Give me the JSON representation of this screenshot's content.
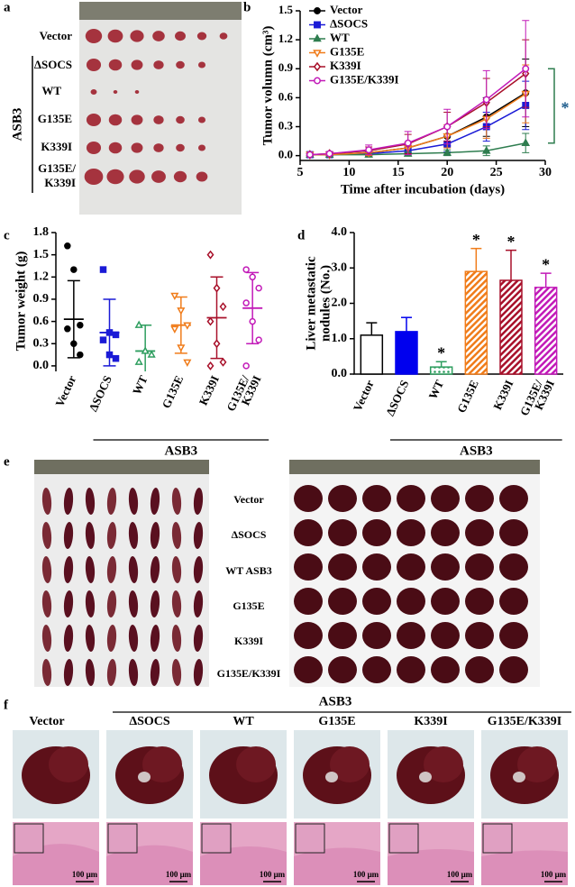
{
  "panel_labels": [
    "a",
    "b",
    "c",
    "d",
    "e",
    "f"
  ],
  "panel_a": {
    "rows": [
      "Vector",
      "ΔSOCS",
      "WT",
      "G135E",
      "K339I",
      [
        "G135E/",
        "K339I"
      ]
    ],
    "group": "ASB3"
  },
  "panel_e": {
    "rows": [
      "Vector",
      "ΔSOCS",
      "WT ASB3",
      "G135E",
      "K339I",
      "G135E/K339I"
    ]
  },
  "panel_f": {
    "group": "ASB3",
    "columns": [
      "Vector",
      "ΔSOCS",
      "WT",
      "G135E",
      "K339I",
      "G135E/K339I"
    ],
    "scale_bars": [
      "100 μm",
      "100 μm",
      "100 μm",
      "100 μm",
      "100 μm",
      "100 μm"
    ]
  },
  "chart_data": [
    {
      "type": "line",
      "xlabel": "Time after incubation (days)",
      "ylabel": "Tumor volumn (cm³)",
      "x": [
        6,
        8,
        12,
        16,
        20,
        24,
        28
      ],
      "xlim": [
        5,
        30
      ],
      "xticks": [
        5,
        10,
        15,
        20,
        25,
        30
      ],
      "ylim": [
        -0.05,
        1.5
      ],
      "yticks": [
        {
          "value": 0,
          "label": "0.0"
        },
        0.3,
        0.6,
        0.9,
        1.2,
        1.5
      ],
      "series": [
        {
          "name": "Vector",
          "color": "#000000",
          "marker": "circle",
          "filled": true,
          "values": [
            0.01,
            0.01,
            0.03,
            0.08,
            0.2,
            0.4,
            0.65
          ],
          "errors": [
            0.01,
            0.01,
            0.02,
            0.05,
            0.1,
            0.2,
            0.35
          ]
        },
        {
          "name": "ΔSOCS",
          "color": "#1a1ad6",
          "marker": "square",
          "filled": true,
          "values": [
            0.01,
            0.01,
            0.02,
            0.05,
            0.12,
            0.3,
            0.52
          ],
          "errors": [
            0.01,
            0.01,
            0.02,
            0.04,
            0.08,
            0.15,
            0.25
          ]
        },
        {
          "name": "WT",
          "color": "#2e7d4f",
          "marker": "triangle-up",
          "filled": true,
          "values": [
            0.01,
            0.01,
            0.01,
            0.02,
            0.03,
            0.05,
            0.13
          ],
          "errors": [
            0.01,
            0.01,
            0.01,
            0.02,
            0.03,
            0.05,
            0.1
          ]
        },
        {
          "name": "G135E",
          "color": "#f07c1a",
          "marker": "triangle-down",
          "filled": false,
          "values": [
            0.01,
            0.01,
            0.03,
            0.08,
            0.2,
            0.38,
            0.64
          ],
          "errors": [
            0.01,
            0.01,
            0.03,
            0.06,
            0.12,
            0.2,
            0.3
          ]
        },
        {
          "name": "K339I",
          "color": "#a8102a",
          "marker": "diamond",
          "filled": false,
          "values": [
            0.01,
            0.02,
            0.05,
            0.12,
            0.3,
            0.55,
            0.85
          ],
          "errors": [
            0.01,
            0.02,
            0.04,
            0.1,
            0.15,
            0.25,
            0.35
          ]
        },
        {
          "name": "G135E/K339I",
          "color": "#c21ab8",
          "marker": "circle",
          "filled": false,
          "values": [
            0.01,
            0.02,
            0.06,
            0.13,
            0.3,
            0.58,
            0.9
          ],
          "errors": [
            0.01,
            0.02,
            0.05,
            0.12,
            0.18,
            0.3,
            0.5
          ]
        }
      ],
      "annotation": "*",
      "bracket_color": "#2e7d4f"
    },
    {
      "type": "dotplot",
      "ylabel": "Tumor weight (g)",
      "categories": [
        "Vector",
        "ΔSOCS",
        "WT",
        "G135E",
        "K339I",
        [
          "G135E/",
          "K339I"
        ]
      ],
      "group_label": "ASB3",
      "ylim": [
        -0.05,
        1.8
      ],
      "yticks": [
        {
          "value": 0,
          "label": "0.0"
        },
        0.3,
        0.6,
        0.9,
        1.2,
        1.5,
        1.8
      ],
      "groups": [
        {
          "color": "#000000",
          "marker": "circle",
          "filled": true,
          "points": [
            1.62,
            1.3,
            0.55,
            0.5,
            0.3,
            0.15
          ],
          "mean": 0.63,
          "sd": 0.52
        },
        {
          "color": "#1a1ad6",
          "marker": "square",
          "filled": true,
          "points": [
            1.3,
            0.45,
            0.42,
            0.35,
            0.15,
            0.1
          ],
          "mean": 0.45,
          "sd": 0.45
        },
        {
          "color": "#2e9e5f",
          "marker": "triangle-up",
          "filled": false,
          "points": [
            0.55,
            0.2,
            0.15,
            0.05
          ],
          "mean": 0.2,
          "sd": 0.35
        },
        {
          "color": "#f07c1a",
          "marker": "triangle-down",
          "filled": false,
          "points": [
            0.95,
            0.75,
            0.55,
            0.5,
            0.25,
            0.05
          ],
          "mean": 0.55,
          "sd": 0.38
        },
        {
          "color": "#a8102a",
          "marker": "diamond",
          "filled": false,
          "points": [
            1.5,
            1.05,
            0.8,
            0.6,
            0.3,
            0.05,
            0.0
          ],
          "mean": 0.65,
          "sd": 0.55
        },
        {
          "color": "#c21ab8",
          "marker": "circle",
          "filled": false,
          "points": [
            1.3,
            1.2,
            1.05,
            0.85,
            0.6,
            0.35,
            0.0
          ],
          "mean": 0.78,
          "sd": 0.48
        }
      ]
    },
    {
      "type": "bar",
      "ylabel": [
        "Liver metastatic",
        "nodules (No.)"
      ],
      "categories": [
        "Vector",
        "ΔSOCS",
        "WT",
        "G135E",
        "K339I",
        [
          "G135E/",
          "K339I"
        ]
      ],
      "group_label": "ASB3",
      "ylim": [
        0,
        4
      ],
      "yticks": [
        {
          "value": 0,
          "label": "0.0"
        },
        {
          "value": 1,
          "label": "1.0"
        },
        {
          "value": 2,
          "label": "2.0"
        },
        {
          "value": 3,
          "label": "3.0"
        },
        {
          "value": 4,
          "label": "4.0"
        }
      ],
      "values": [
        1.1,
        1.2,
        0.2,
        2.9,
        2.65,
        2.45
      ],
      "errors": [
        0.35,
        0.4,
        0.15,
        0.65,
        0.85,
        0.4
      ],
      "colors": [
        "#000000",
        "#0000ee",
        "#2e9e5f",
        "#f07c1a",
        "#a8102a",
        "#c21ab8"
      ],
      "fills": [
        "none",
        "solid",
        "dots",
        "hatch",
        "hatch",
        "hatch"
      ],
      "significant": [
        false,
        false,
        true,
        true,
        true,
        true
      ],
      "significance_label": "*"
    }
  ]
}
